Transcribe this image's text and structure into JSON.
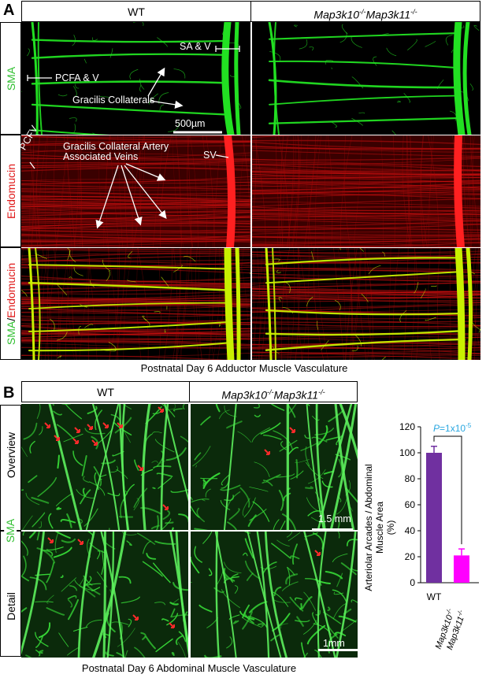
{
  "panelA": {
    "letter": "A",
    "col_wt": "WT",
    "col_ko": "Map3k10",
    "col_ko2": "Map3k11",
    "ko_sup": "-/-",
    "row1": "SMA",
    "row2": "Endomucin",
    "row3_a": "SMA",
    "row3_sep": "/",
    "row3_b": "Endomucin",
    "ann_pcfa": "PCFA & V",
    "ann_sav": "SA & V",
    "ann_grac": "Gracilis Collaterals",
    "scale": "500µm",
    "ann_pcfv": "PCFV",
    "ann_gca1": "Gracilis Collateral Artery",
    "ann_gca2": "Associated Veins",
    "ann_sv": "SV",
    "caption": "Postnatal Day 6 Adductor Muscle Vasculature"
  },
  "panelB": {
    "letter": "B",
    "col_wt": "WT",
    "col_ko": "Map3k10",
    "col_ko2": "Map3k11",
    "ko_sup": "-/-",
    "row1": "Overview",
    "row2": "Detail",
    "row_mid": "SMA",
    "scale1": "1.5 mm",
    "scale2": "1mm",
    "caption": "Postnatal Day 6 Abdominal Muscle Vasculature"
  },
  "chart_data": {
    "type": "bar",
    "categories": [
      "WT",
      "Map3k10 -/- Map3k11 -/-"
    ],
    "cat_label_wt": "WT",
    "cat_label_ko1": "Map3k10",
    "cat_label_ko2": "Map3k11",
    "cat_sup": "-/-",
    "values": [
      100,
      21
    ],
    "errors": [
      5,
      5
    ],
    "colors": [
      "#7030a0",
      "#ff00ff"
    ],
    "ylabel_1": "Arteriolar Arcades / Abdominal",
    "ylabel_2": "Muscle Area",
    "ylabel_3": "(%)",
    "ylim": [
      0,
      120
    ],
    "yticks": [
      "0",
      "20",
      "40",
      "60",
      "80",
      "100",
      "120"
    ],
    "pval_p": "P",
    "pval_text": "=1x10",
    "pval_exp": "-5",
    "pval_color": "#2aa7e0"
  }
}
